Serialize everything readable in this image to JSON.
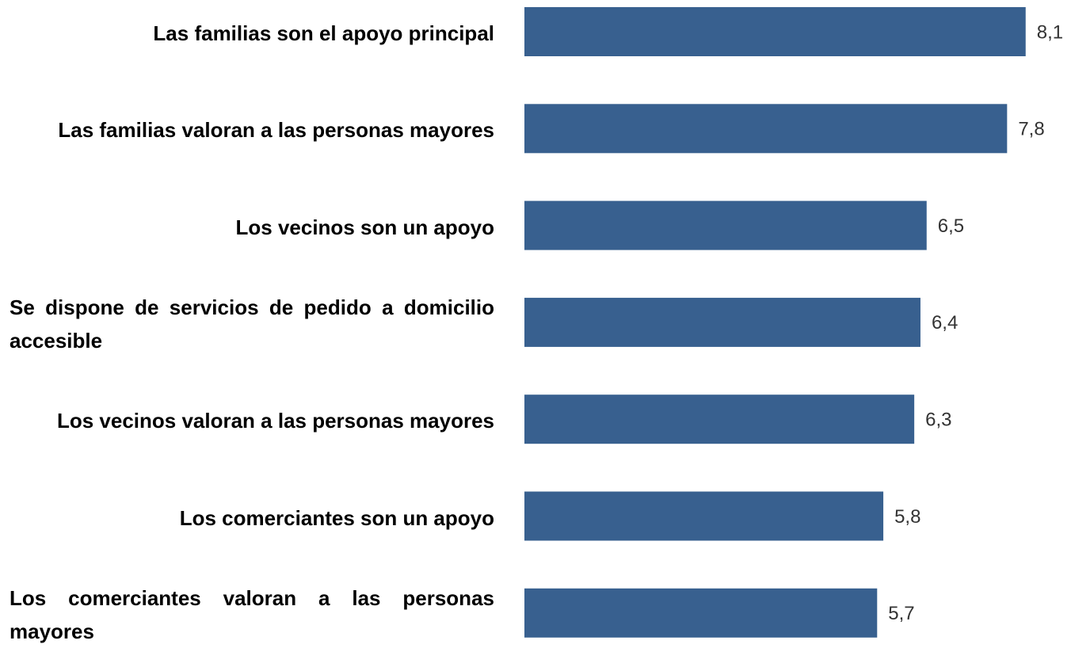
{
  "chart_data": {
    "type": "bar",
    "orientation": "horizontal",
    "categories": [
      "Las familias son el apoyo principal",
      "Las familias valoran a las personas mayores",
      "Los vecinos son un apoyo",
      "Se dispone de servicios de pedido a domicilio accesible",
      "Los vecinos valoran a las personas mayores",
      "Los comerciantes son un apoyo",
      "Los comerciantes valoran a las personas mayores"
    ],
    "values": [
      8.1,
      7.8,
      6.5,
      6.4,
      6.3,
      5.8,
      5.7
    ],
    "value_labels": [
      "8,1",
      "7,8",
      "6,5",
      "6,4",
      "6,3",
      "5,8",
      "5,7"
    ],
    "color": "#38608f",
    "xlim": [
      0,
      8.5
    ]
  }
}
